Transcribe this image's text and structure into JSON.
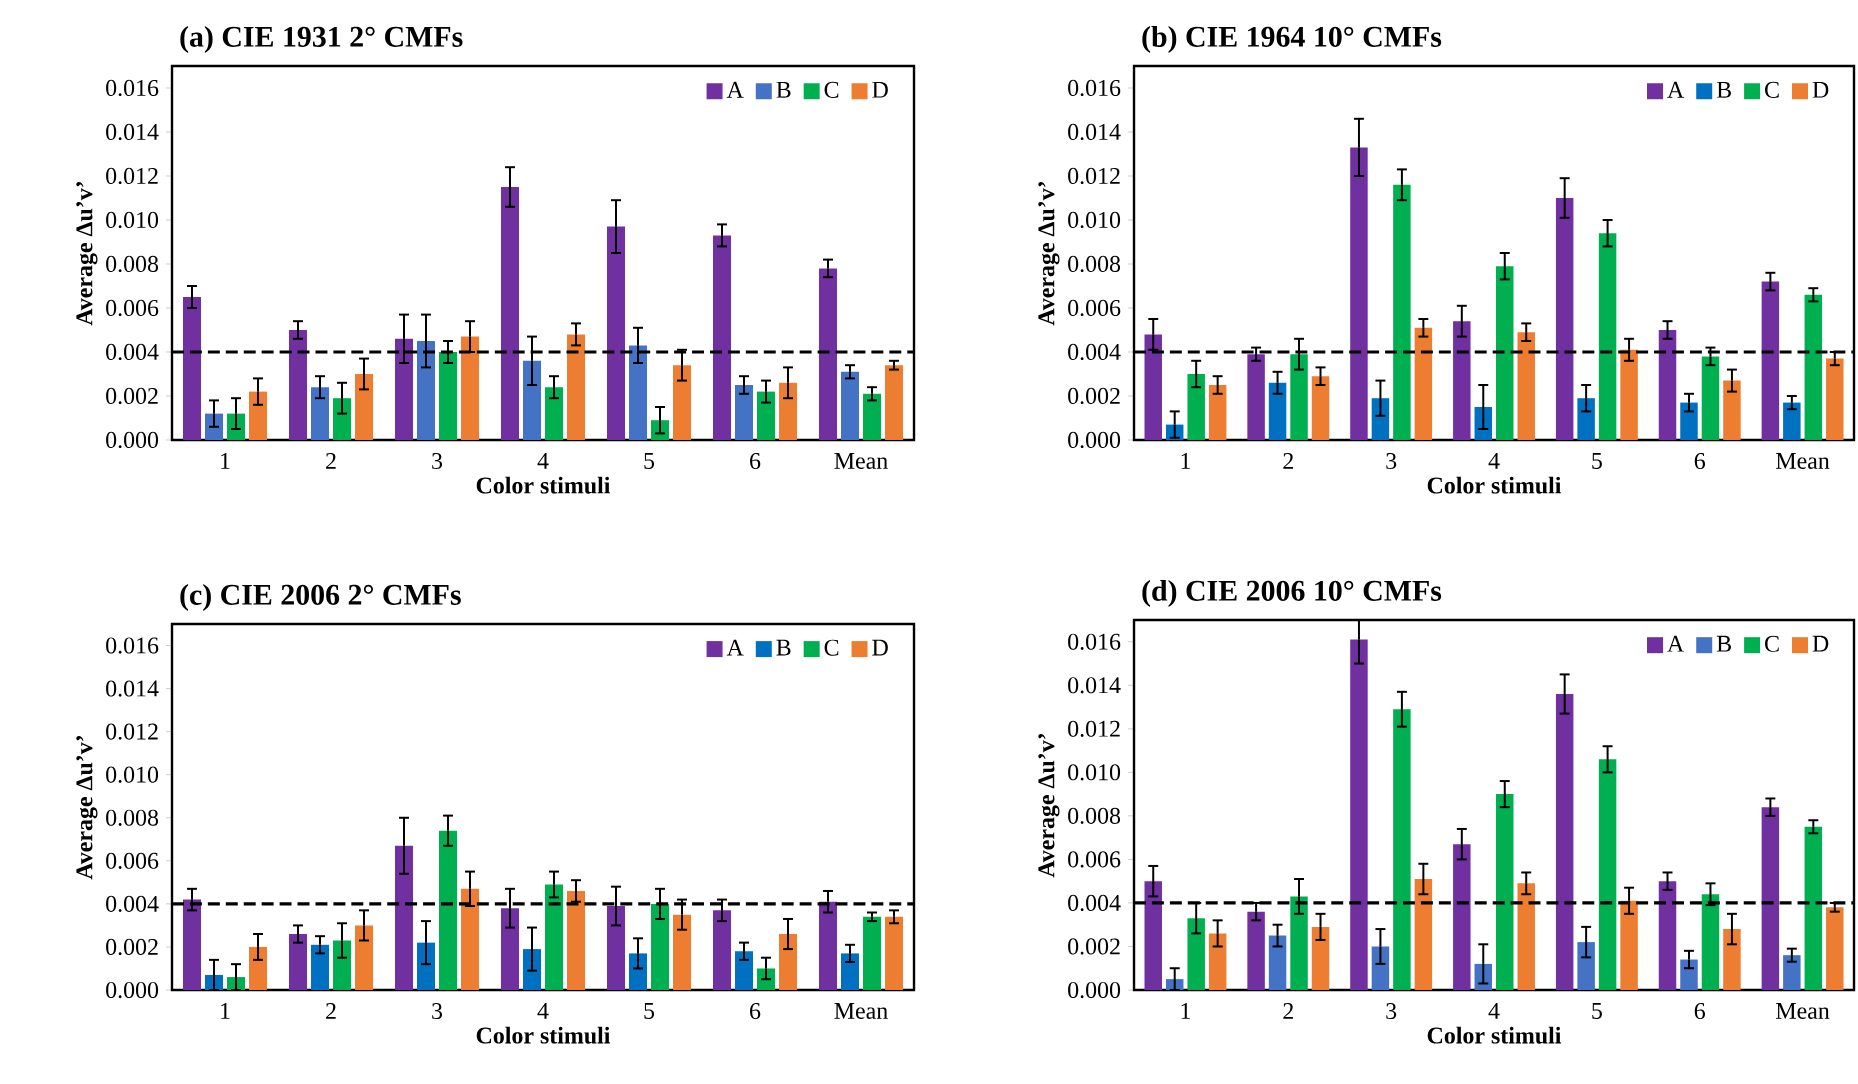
{
  "chart_data": [
    {
      "type": "bar",
      "title": "(a) CIE 1931 2° CMFs",
      "xlabel": "Color stimuli",
      "ylabel": "Average Δu’v’",
      "categories": [
        "1",
        "2",
        "3",
        "4",
        "5",
        "6",
        "Mean"
      ],
      "ylim": [
        0,
        0.017
      ],
      "yticks": [
        {
          "value": 0,
          "label": "0.000"
        },
        {
          "value": 0.002,
          "label": "0.002"
        },
        {
          "value": 0.004,
          "label": "0.004"
        },
        {
          "value": 0.006,
          "label": "0.006"
        },
        {
          "value": 0.008,
          "label": "0.008"
        },
        {
          "value": 0.01,
          "label": "0.010"
        },
        {
          "value": 0.012,
          "label": "0.012"
        },
        {
          "value": 0.014,
          "label": "0.014"
        },
        {
          "value": 0.016,
          "label": "0.016"
        }
      ],
      "legend": "top right",
      "ref_lines": [
        {
          "axis": "y",
          "value": 0.004,
          "line_style": "dashed",
          "color": "#000000"
        }
      ],
      "series": [
        {
          "name": "A",
          "color": "#7030a0",
          "values": [
            0.0065,
            0.005,
            0.0046,
            0.0115,
            0.0097,
            0.0093,
            0.0078
          ],
          "errors": [
            0.0005,
            0.0004,
            0.0011,
            0.0009,
            0.0012,
            0.0005,
            0.0004
          ]
        },
        {
          "name": "B",
          "color": "#4472c4",
          "values": [
            0.0012,
            0.0024,
            0.0045,
            0.0036,
            0.0043,
            0.0025,
            0.0031
          ],
          "errors": [
            0.0006,
            0.0005,
            0.0012,
            0.0011,
            0.0008,
            0.0004,
            0.0003
          ]
        },
        {
          "name": "C",
          "color": "#00b050",
          "values": [
            0.0012,
            0.0019,
            0.004,
            0.0024,
            0.0009,
            0.0022,
            0.0021
          ],
          "errors": [
            0.0007,
            0.0007,
            0.0005,
            0.0005,
            0.0006,
            0.0005,
            0.0003
          ]
        },
        {
          "name": "D",
          "color": "#ed7d31",
          "values": [
            0.0022,
            0.003,
            0.0047,
            0.0048,
            0.0034,
            0.0026,
            0.0034
          ],
          "errors": [
            0.0006,
            0.0007,
            0.0007,
            0.0005,
            0.0007,
            0.0007,
            0.0002
          ]
        }
      ]
    },
    {
      "type": "bar",
      "title": "(b) CIE 1964 10° CMFs",
      "xlabel": "Color stimuli",
      "ylabel": "Average Δu’v’",
      "categories": [
        "1",
        "2",
        "3",
        "4",
        "5",
        "6",
        "Mean"
      ],
      "ylim": [
        0,
        0.017
      ],
      "yticks": [
        {
          "value": 0,
          "label": "0.000"
        },
        {
          "value": 0.002,
          "label": "0.002"
        },
        {
          "value": 0.004,
          "label": "0.004"
        },
        {
          "value": 0.006,
          "label": "0.006"
        },
        {
          "value": 0.008,
          "label": "0.008"
        },
        {
          "value": 0.01,
          "label": "0.010"
        },
        {
          "value": 0.012,
          "label": "0.012"
        },
        {
          "value": 0.014,
          "label": "0.014"
        },
        {
          "value": 0.016,
          "label": "0.016"
        }
      ],
      "legend": "top right",
      "ref_lines": [
        {
          "axis": "y",
          "value": 0.004,
          "line_style": "dashed",
          "color": "#000000"
        }
      ],
      "series": [
        {
          "name": "A",
          "color": "#7030a0",
          "values": [
            0.0048,
            0.0039,
            0.0133,
            0.0054,
            0.011,
            0.005,
            0.0072
          ],
          "errors": [
            0.0007,
            0.0003,
            0.0013,
            0.0007,
            0.0009,
            0.0004,
            0.0004
          ]
        },
        {
          "name": "B",
          "color": "#0070c0",
          "values": [
            0.0007,
            0.0026,
            0.0019,
            0.0015,
            0.0019,
            0.0017,
            0.0017
          ],
          "errors": [
            0.0006,
            0.0005,
            0.0008,
            0.001,
            0.0006,
            0.0004,
            0.0003
          ]
        },
        {
          "name": "C",
          "color": "#00b050",
          "values": [
            0.003,
            0.0039,
            0.0116,
            0.0079,
            0.0094,
            0.0038,
            0.0066
          ],
          "errors": [
            0.0006,
            0.0007,
            0.0007,
            0.0006,
            0.0006,
            0.0004,
            0.0003
          ]
        },
        {
          "name": "D",
          "color": "#ed7d31",
          "values": [
            0.0025,
            0.0029,
            0.0051,
            0.0049,
            0.0041,
            0.0027,
            0.0037
          ],
          "errors": [
            0.0004,
            0.0004,
            0.0004,
            0.0004,
            0.0005,
            0.0005,
            0.0003
          ]
        }
      ]
    },
    {
      "type": "bar",
      "title": "(c) CIE 2006 2° CMFs",
      "xlabel": "Color stimuli",
      "ylabel": "Average Δu’v’",
      "categories": [
        "1",
        "2",
        "3",
        "4",
        "5",
        "6",
        "Mean"
      ],
      "ylim": [
        0,
        0.017
      ],
      "yticks": [
        {
          "value": 0,
          "label": "0.000"
        },
        {
          "value": 0.002,
          "label": "0.002"
        },
        {
          "value": 0.004,
          "label": "0.004"
        },
        {
          "value": 0.006,
          "label": "0.006"
        },
        {
          "value": 0.008,
          "label": "0.008"
        },
        {
          "value": 0.01,
          "label": "0.010"
        },
        {
          "value": 0.012,
          "label": "0.012"
        },
        {
          "value": 0.014,
          "label": "0.014"
        },
        {
          "value": 0.016,
          "label": "0.016"
        }
      ],
      "legend": "top right",
      "ref_lines": [
        {
          "axis": "y",
          "value": 0.004,
          "line_style": "dashed",
          "color": "#000000"
        }
      ],
      "series": [
        {
          "name": "A",
          "color": "#7030a0",
          "values": [
            0.0042,
            0.0026,
            0.0067,
            0.0038,
            0.0039,
            0.0037,
            0.0041
          ],
          "errors": [
            0.0005,
            0.0004,
            0.0013,
            0.0009,
            0.0009,
            0.0005,
            0.0005
          ]
        },
        {
          "name": "B",
          "color": "#0070c0",
          "values": [
            0.0007,
            0.0021,
            0.0022,
            0.0019,
            0.0017,
            0.0018,
            0.0017
          ],
          "errors": [
            0.0007,
            0.0004,
            0.001,
            0.001,
            0.0007,
            0.0004,
            0.0004
          ]
        },
        {
          "name": "C",
          "color": "#00b050",
          "values": [
            0.0006,
            0.0023,
            0.0074,
            0.0049,
            0.004,
            0.001,
            0.0034
          ],
          "errors": [
            0.0006,
            0.0008,
            0.0007,
            0.0006,
            0.0007,
            0.0005,
            0.0002
          ]
        },
        {
          "name": "D",
          "color": "#ed7d31",
          "values": [
            0.002,
            0.003,
            0.0047,
            0.0046,
            0.0035,
            0.0026,
            0.0034
          ],
          "errors": [
            0.0006,
            0.0007,
            0.0008,
            0.0005,
            0.0007,
            0.0007,
            0.0003
          ]
        }
      ]
    },
    {
      "type": "bar",
      "title": "(d) CIE 2006 10° CMFs",
      "xlabel": "Color stimuli",
      "ylabel": "Average Δu’v’",
      "categories": [
        "1",
        "2",
        "3",
        "4",
        "5",
        "6",
        "Mean"
      ],
      "ylim": [
        0,
        0.017
      ],
      "yticks": [
        {
          "value": 0,
          "label": "0.000"
        },
        {
          "value": 0.002,
          "label": "0.002"
        },
        {
          "value": 0.004,
          "label": "0.004"
        },
        {
          "value": 0.006,
          "label": "0.006"
        },
        {
          "value": 0.008,
          "label": "0.008"
        },
        {
          "value": 0.01,
          "label": "0.010"
        },
        {
          "value": 0.012,
          "label": "0.012"
        },
        {
          "value": 0.014,
          "label": "0.014"
        },
        {
          "value": 0.016,
          "label": "0.016"
        }
      ],
      "legend": "top right",
      "ref_lines": [
        {
          "axis": "y",
          "value": 0.004,
          "line_style": "dashed",
          "color": "#000000"
        }
      ],
      "series": [
        {
          "name": "A",
          "color": "#7030a0",
          "values": [
            0.005,
            0.0036,
            0.0161,
            0.0067,
            0.0136,
            0.005,
            0.0084
          ],
          "errors": [
            0.0007,
            0.0004,
            [
              0.015,
              0.017
            ],
            0.0007,
            0.0009,
            0.0004,
            0.0004
          ]
        },
        {
          "name": "B",
          "color": "#4472c4",
          "values": [
            0.0005,
            0.0025,
            0.002,
            0.0012,
            0.0022,
            0.0014,
            0.0016
          ],
          "errors": [
            0.0005,
            0.0005,
            0.0008,
            0.0009,
            0.0007,
            0.0004,
            0.0003
          ]
        },
        {
          "name": "C",
          "color": "#00b050",
          "values": [
            0.0033,
            0.0043,
            0.0129,
            0.009,
            0.0106,
            0.0044,
            0.0075
          ],
          "errors": [
            0.0007,
            0.0008,
            0.0008,
            0.0006,
            0.0006,
            0.0005,
            0.0003
          ]
        },
        {
          "name": "D",
          "color": "#ed7d31",
          "values": [
            0.0026,
            0.0029,
            0.0051,
            0.0049,
            0.0041,
            0.0028,
            0.0038
          ],
          "errors": [
            0.0006,
            0.0006,
            0.0007,
            0.0005,
            0.0006,
            0.0007,
            0.0002
          ]
        }
      ]
    }
  ]
}
